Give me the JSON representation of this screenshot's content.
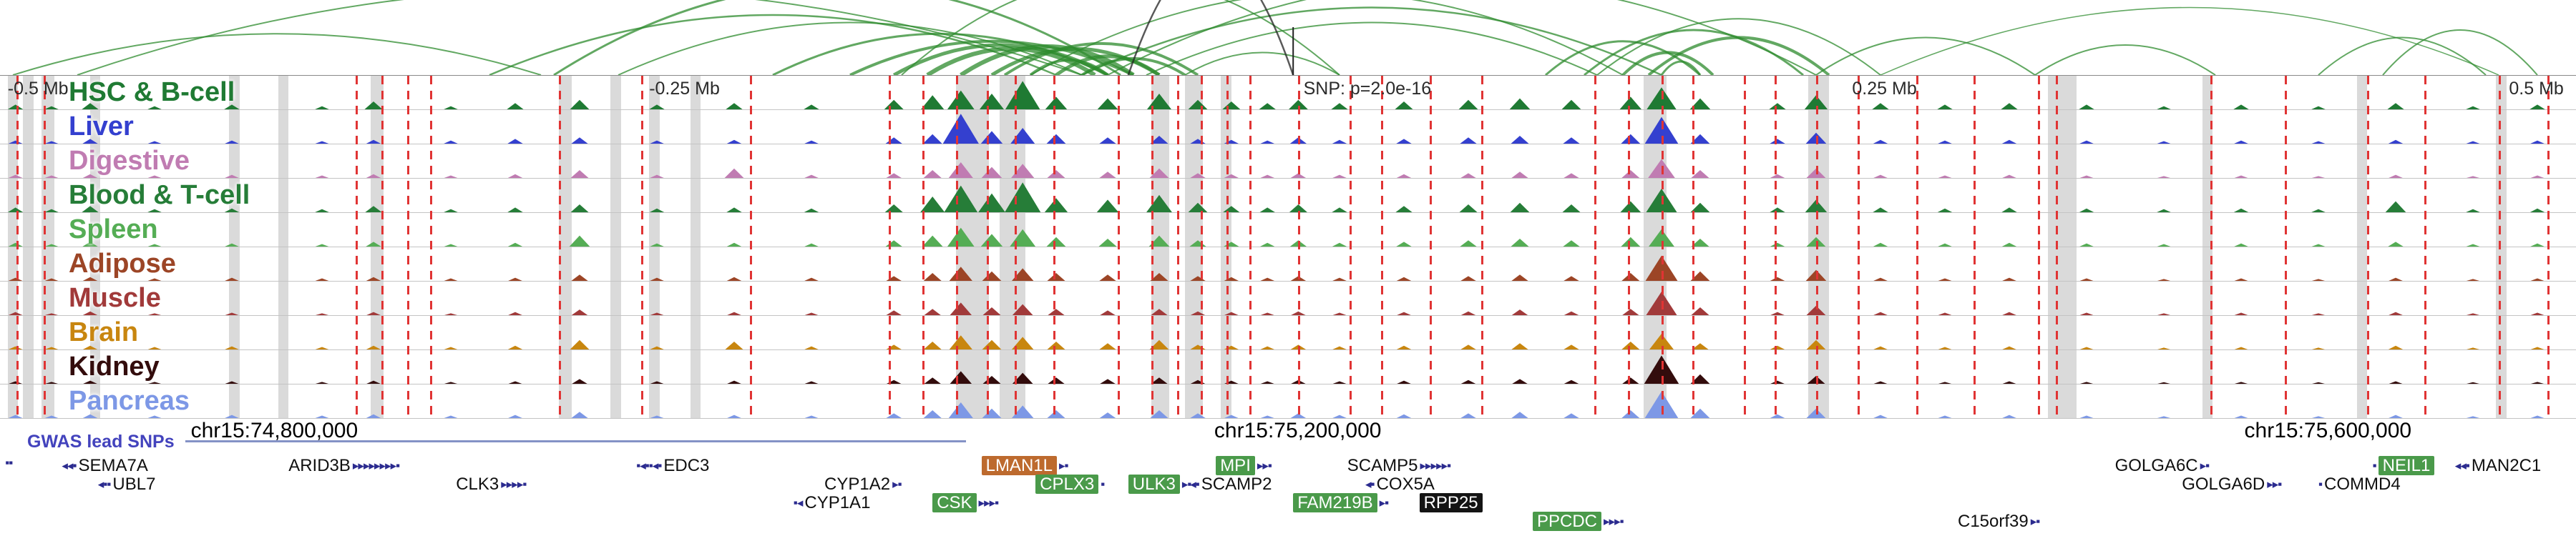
{
  "chart_data": {
    "type": "area",
    "title": "",
    "description": "Genome-browser locus view: chromatin interaction arcs, 10 tissue accessibility signal tracks (normalized 0-1), GWAS lead SNP dashed lines, highlighted regions, and gene annotations on chr15.",
    "gwas_label": "GWAS lead SNPs",
    "region": {
      "coordinates": [
        {
          "text": "chr15:74,800,000",
          "x": 0.1065
        },
        {
          "text": "chr15:75,200,000",
          "x": 0.5038
        },
        {
          "text": "chr15:75,600,000",
          "x": 0.9037
        }
      ]
    },
    "scale_labels": [
      {
        "text": "-0.5 Mb",
        "x": 0.003
      },
      {
        "text": "-0.25 Mb",
        "x": 0.252
      },
      {
        "text": "SNP: p=2.0e-16",
        "x": 0.506
      },
      {
        "text": "0.25 Mb",
        "x": 0.719
      },
      {
        "text": "0.5 Mb",
        "x": 0.974
      }
    ],
    "snp": {
      "x": 0.502,
      "label": "SNP: p=2.0e-16"
    },
    "arcs": {
      "color": "#2e8b2e",
      "items": [
        [
          0.005,
          0.21,
          0.55,
          2
        ],
        [
          0.03,
          0.42,
          1.15,
          2
        ],
        [
          0.19,
          0.41,
          0.8,
          2.5
        ],
        [
          0.215,
          0.435,
          1.2,
          3
        ],
        [
          0.24,
          0.42,
          0.7,
          2
        ],
        [
          0.3,
          0.43,
          0.55,
          3
        ],
        [
          0.33,
          0.44,
          0.45,
          4
        ],
        [
          0.347,
          0.43,
          0.4,
          5
        ],
        [
          0.36,
          0.425,
          0.35,
          6
        ],
        [
          0.373,
          0.44,
          0.38,
          6
        ],
        [
          0.385,
          0.45,
          0.35,
          5
        ],
        [
          0.39,
          0.465,
          0.42,
          4
        ],
        [
          0.4,
          0.43,
          0.2,
          4
        ],
        [
          0.41,
          0.45,
          0.25,
          5
        ],
        [
          0.42,
          0.46,
          0.22,
          4
        ],
        [
          0.35,
          0.52,
          1.3,
          2
        ],
        [
          0.4,
          0.63,
          1.1,
          2
        ],
        [
          0.42,
          0.645,
          0.9,
          2.5
        ],
        [
          0.43,
          0.705,
          1.25,
          2
        ],
        [
          0.445,
          0.62,
          0.7,
          2
        ],
        [
          0.46,
          0.52,
          0.3,
          2
        ],
        [
          0.438,
          0.502,
          1.6,
          2.5,
          "#222222"
        ],
        [
          0.6,
          0.66,
          0.45,
          3
        ],
        [
          0.615,
          0.7,
          0.6,
          3
        ],
        [
          0.63,
          0.665,
          0.3,
          4
        ],
        [
          0.64,
          0.71,
          0.5,
          4
        ],
        [
          0.645,
          0.66,
          0.18,
          3
        ],
        [
          0.62,
          0.73,
          0.75,
          2
        ],
        [
          0.705,
          0.79,
          0.5,
          2
        ],
        [
          0.73,
          0.97,
          0.9,
          1.5
        ],
        [
          0.79,
          0.86,
          0.4,
          2
        ],
        [
          0.9,
          0.965,
          0.5,
          2
        ],
        [
          0.925,
          0.985,
          0.6,
          2
        ]
      ]
    },
    "lead_snp_lines": [
      0.0064,
      0.017,
      0.138,
      0.148,
      0.158,
      0.167,
      0.217,
      0.249,
      0.291,
      0.345,
      0.358,
      0.371,
      0.383,
      0.394,
      0.409,
      0.434,
      0.447,
      0.457,
      0.466,
      0.476,
      0.485,
      0.504,
      0.524,
      0.536,
      0.555,
      0.575,
      0.619,
      0.632,
      0.645,
      0.657,
      0.677,
      0.689,
      0.705,
      0.721,
      0.744,
      0.766,
      0.791,
      0.798,
      0.858,
      0.887,
      0.919,
      0.941,
      0.97,
      0.989
    ],
    "highlight_bands": [
      [
        0.003,
        0.004
      ],
      [
        0.009,
        0.004
      ],
      [
        0.016,
        0.005
      ],
      [
        0.035,
        0.004
      ],
      [
        0.089,
        0.004
      ],
      [
        0.108,
        0.004
      ],
      [
        0.144,
        0.005
      ],
      [
        0.217,
        0.005
      ],
      [
        0.237,
        0.004
      ],
      [
        0.252,
        0.004
      ],
      [
        0.268,
        0.004
      ],
      [
        0.371,
        0.013
      ],
      [
        0.388,
        0.01
      ],
      [
        0.447,
        0.007
      ],
      [
        0.46,
        0.007
      ],
      [
        0.474,
        0.004
      ],
      [
        0.638,
        0.009
      ],
      [
        0.702,
        0.008
      ],
      [
        0.795,
        0.011
      ],
      [
        0.855,
        0.004
      ],
      [
        0.915,
        0.004
      ],
      [
        0.969,
        0.004
      ]
    ],
    "tracks": {
      "ylim": [
        0,
        1
      ],
      "peak_positions": [
        0.006,
        0.02,
        0.035,
        0.06,
        0.09,
        0.125,
        0.145,
        0.175,
        0.2,
        0.225,
        0.255,
        0.285,
        0.315,
        0.347,
        0.362,
        0.373,
        0.385,
        0.397,
        0.41,
        0.43,
        0.45,
        0.465,
        0.478,
        0.492,
        0.504,
        0.52,
        0.545,
        0.57,
        0.59,
        0.61,
        0.633,
        0.645,
        0.66,
        0.69,
        0.705,
        0.73,
        0.755,
        0.78,
        0.81,
        0.84,
        0.87,
        0.9,
        0.93,
        0.96,
        0.985
      ],
      "items": [
        {
          "name": "HSC & B-cell",
          "color": "#1f7a33",
          "heights": [
            0.15,
            0.1,
            0.2,
            0.1,
            0.15,
            0.1,
            0.25,
            0.1,
            0.2,
            0.3,
            0.15,
            0.2,
            0.15,
            0.3,
            0.45,
            0.6,
            0.5,
            0.9,
            0.4,
            0.35,
            0.5,
            0.3,
            0.25,
            0.2,
            0.3,
            0.2,
            0.25,
            0.3,
            0.35,
            0.3,
            0.4,
            0.7,
            0.35,
            0.2,
            0.45,
            0.2,
            0.15,
            0.2,
            0.15,
            0.1,
            0.15,
            0.1,
            0.2,
            0.1,
            0.15
          ]
        },
        {
          "name": "Liver",
          "color": "#3440cf",
          "heights": [
            0.1,
            0.08,
            0.15,
            0.08,
            0.1,
            0.08,
            0.12,
            0.1,
            0.15,
            0.2,
            0.1,
            0.12,
            0.1,
            0.2,
            0.3,
            0.95,
            0.4,
            0.5,
            0.3,
            0.2,
            0.25,
            0.15,
            0.12,
            0.1,
            0.2,
            0.12,
            0.15,
            0.2,
            0.25,
            0.2,
            0.3,
            0.85,
            0.3,
            0.15,
            0.35,
            0.12,
            0.1,
            0.12,
            0.1,
            0.08,
            0.1,
            0.08,
            0.12,
            0.08,
            0.1
          ]
        },
        {
          "name": "Digestive",
          "color": "#c07cb2",
          "heights": [
            0.1,
            0.08,
            0.12,
            0.08,
            0.1,
            0.08,
            0.12,
            0.08,
            0.12,
            0.25,
            0.1,
            0.3,
            0.1,
            0.15,
            0.25,
            0.5,
            0.35,
            0.45,
            0.25,
            0.2,
            0.3,
            0.15,
            0.12,
            0.1,
            0.15,
            0.1,
            0.12,
            0.15,
            0.2,
            0.15,
            0.25,
            0.6,
            0.25,
            0.12,
            0.3,
            0.1,
            0.08,
            0.1,
            0.08,
            0.06,
            0.08,
            0.06,
            0.1,
            0.06,
            0.08
          ]
        },
        {
          "name": "Blood & T-cell",
          "color": "#267d38",
          "heights": [
            0.15,
            0.1,
            0.2,
            0.1,
            0.12,
            0.1,
            0.2,
            0.1,
            0.15,
            0.25,
            0.12,
            0.15,
            0.12,
            0.25,
            0.5,
            0.85,
            0.6,
            0.95,
            0.45,
            0.4,
            0.55,
            0.3,
            0.2,
            0.15,
            0.25,
            0.15,
            0.2,
            0.25,
            0.3,
            0.25,
            0.35,
            0.75,
            0.3,
            0.15,
            0.4,
            0.15,
            0.12,
            0.15,
            0.12,
            0.1,
            0.12,
            0.1,
            0.35,
            0.1,
            0.12
          ]
        },
        {
          "name": "Spleen",
          "color": "#55ad55",
          "heights": [
            0.12,
            0.08,
            0.15,
            0.08,
            0.1,
            0.08,
            0.15,
            0.08,
            0.12,
            0.35,
            0.1,
            0.12,
            0.1,
            0.2,
            0.35,
            0.6,
            0.4,
            0.55,
            0.3,
            0.25,
            0.35,
            0.2,
            0.15,
            0.12,
            0.2,
            0.12,
            0.15,
            0.2,
            0.25,
            0.2,
            0.3,
            0.55,
            0.25,
            0.12,
            0.3,
            0.12,
            0.1,
            0.12,
            0.1,
            0.08,
            0.1,
            0.08,
            0.15,
            0.08,
            0.1
          ]
        },
        {
          "name": "Adipose",
          "color": "#9c4526",
          "heights": [
            0.1,
            0.08,
            0.12,
            0.08,
            0.1,
            0.08,
            0.12,
            0.08,
            0.1,
            0.2,
            0.1,
            0.12,
            0.1,
            0.15,
            0.25,
            0.45,
            0.3,
            0.4,
            0.25,
            0.2,
            0.25,
            0.15,
            0.12,
            0.1,
            0.15,
            0.1,
            0.12,
            0.15,
            0.2,
            0.15,
            0.25,
            0.8,
            0.3,
            0.12,
            0.35,
            0.1,
            0.08,
            0.1,
            0.08,
            0.06,
            0.08,
            0.06,
            0.1,
            0.06,
            0.08
          ]
        },
        {
          "name": "Muscle",
          "color": "#a13a3a",
          "heights": [
            0.1,
            0.06,
            0.12,
            0.06,
            0.08,
            0.06,
            0.1,
            0.06,
            0.1,
            0.18,
            0.08,
            0.1,
            0.08,
            0.15,
            0.2,
            0.4,
            0.25,
            0.35,
            0.2,
            0.15,
            0.2,
            0.12,
            0.1,
            0.08,
            0.12,
            0.08,
            0.1,
            0.12,
            0.18,
            0.12,
            0.2,
            0.75,
            0.25,
            0.1,
            0.3,
            0.1,
            0.08,
            0.1,
            0.08,
            0.06,
            0.08,
            0.06,
            0.1,
            0.06,
            0.08
          ]
        },
        {
          "name": "Brain",
          "color": "#c8860f",
          "heights": [
            0.1,
            0.08,
            0.12,
            0.08,
            0.1,
            0.08,
            0.12,
            0.08,
            0.12,
            0.3,
            0.1,
            0.25,
            0.1,
            0.15,
            0.25,
            0.45,
            0.3,
            0.4,
            0.25,
            0.2,
            0.3,
            0.15,
            0.12,
            0.1,
            0.15,
            0.1,
            0.12,
            0.15,
            0.2,
            0.15,
            0.25,
            0.5,
            0.2,
            0.12,
            0.3,
            0.1,
            0.08,
            0.1,
            0.08,
            0.06,
            0.08,
            0.06,
            0.12,
            0.06,
            0.08
          ]
        },
        {
          "name": "Kidney",
          "color": "#330c0c",
          "heights": [
            0.08,
            0.06,
            0.1,
            0.06,
            0.08,
            0.06,
            0.1,
            0.06,
            0.08,
            0.15,
            0.08,
            0.1,
            0.08,
            0.12,
            0.2,
            0.4,
            0.25,
            0.35,
            0.2,
            0.15,
            0.2,
            0.12,
            0.1,
            0.08,
            0.12,
            0.08,
            0.1,
            0.12,
            0.15,
            0.12,
            0.2,
            0.9,
            0.3,
            0.1,
            0.25,
            0.08,
            0.06,
            0.08,
            0.06,
            0.05,
            0.06,
            0.05,
            0.08,
            0.05,
            0.06
          ]
        },
        {
          "name": "Pancreas",
          "color": "#7d98e6",
          "heights": [
            0.1,
            0.08,
            0.12,
            0.08,
            0.1,
            0.08,
            0.12,
            0.08,
            0.1,
            0.2,
            0.08,
            0.1,
            0.08,
            0.15,
            0.25,
            0.5,
            0.3,
            0.4,
            0.25,
            0.18,
            0.25,
            0.15,
            0.1,
            0.08,
            0.15,
            0.1,
            0.12,
            0.15,
            0.2,
            0.15,
            0.25,
            0.85,
            0.3,
            0.12,
            0.3,
            0.1,
            0.08,
            0.1,
            0.08,
            0.06,
            0.08,
            0.06,
            0.1,
            0.06,
            0.08
          ]
        }
      ]
    },
    "genes": {
      "row_tops": [
        28,
        54,
        80,
        106
      ],
      "long_transcript": {
        "x1": 0.072,
        "x2": 0.375
      },
      "items": [
        {
          "r": 0,
          "x": 0.002,
          "label": "",
          "pre": "▪▪"
        },
        {
          "r": 0,
          "x": 0.024,
          "label": "SEMA7A",
          "pre": "◂◂▪"
        },
        {
          "r": 0,
          "x": 0.112,
          "label": "ARID3B",
          "post": "▸▸▸▸▸▸▸▸▪"
        },
        {
          "r": 0,
          "x": 0.247,
          "label": "EDC3",
          "pre": "▪◂▪▪◂▪"
        },
        {
          "r": 0,
          "x": 0.381,
          "label": "LMAN1L",
          "style": "orange",
          "post": "▸▪"
        },
        {
          "r": 0,
          "x": 0.472,
          "label": "MPI",
          "style": "green",
          "post": "▸▸▪"
        },
        {
          "r": 0,
          "x": 0.523,
          "label": "SCAMP5",
          "post": "▸▸▸▸▸▪"
        },
        {
          "r": 0,
          "x": 0.821,
          "label": "GOLGA6C",
          "post": "▸▪"
        },
        {
          "r": 0,
          "x": 0.921,
          "label": "NEIL1",
          "style": "green",
          "pre": "▪"
        },
        {
          "r": 0,
          "x": 0.953,
          "label": "MAN2C1",
          "pre": "◂◂▪"
        },
        {
          "r": 1,
          "x": 0.038,
          "label": "UBL7",
          "pre": "◂▪▪"
        },
        {
          "r": 1,
          "x": 0.177,
          "label": "CLK3",
          "post": "▸▸▸▸▪"
        },
        {
          "r": 1,
          "x": 0.32,
          "label": "CYP1A2",
          "post": "▸▪"
        },
        {
          "r": 1,
          "x": 0.402,
          "label": "CPLX3",
          "style": "green",
          "post": "▪"
        },
        {
          "r": 1,
          "x": 0.438,
          "label": "ULK3",
          "style": "green",
          "post": "▸▪"
        },
        {
          "r": 1,
          "x": 0.462,
          "label": "SCAMP2",
          "pre": "◂▪"
        },
        {
          "r": 1,
          "x": 0.53,
          "label": "COX5A",
          "pre": "◂▪"
        },
        {
          "r": 1,
          "x": 0.847,
          "label": "GOLGA6D",
          "post": "▸▸▪"
        },
        {
          "r": 1,
          "x": 0.9,
          "label": "COMMD4",
          "pre": "▪"
        },
        {
          "r": 2,
          "x": 0.308,
          "label": "CYP1A1",
          "pre": "▪◂"
        },
        {
          "r": 2,
          "x": 0.362,
          "label": "CSK",
          "style": "green",
          "post": "▸▸▸▪"
        },
        {
          "r": 2,
          "x": 0.502,
          "label": "FAM219B",
          "style": "green",
          "post": "▸▪"
        },
        {
          "r": 2,
          "x": 0.551,
          "label": "RPP25",
          "style": "black"
        },
        {
          "r": 3,
          "x": 0.595,
          "label": "PPCDC",
          "style": "green",
          "post": "▸▸▸▪"
        },
        {
          "r": 3,
          "x": 0.76,
          "label": "C15orf39",
          "post": "▸▪"
        }
      ]
    },
    "colors": {
      "lead_snp_line": "#e03434",
      "highlight_band": "#a8a8a8",
      "arc": "#2e8b2e",
      "snp_marker": "#222222",
      "gene_body": "#2b2b8f",
      "gene_highlight_green": "#4a9a4a",
      "gene_highlight_orange": "#bd6a2e",
      "gene_highlight_black": "#141414",
      "gwas_label": "#4343bd"
    }
  }
}
